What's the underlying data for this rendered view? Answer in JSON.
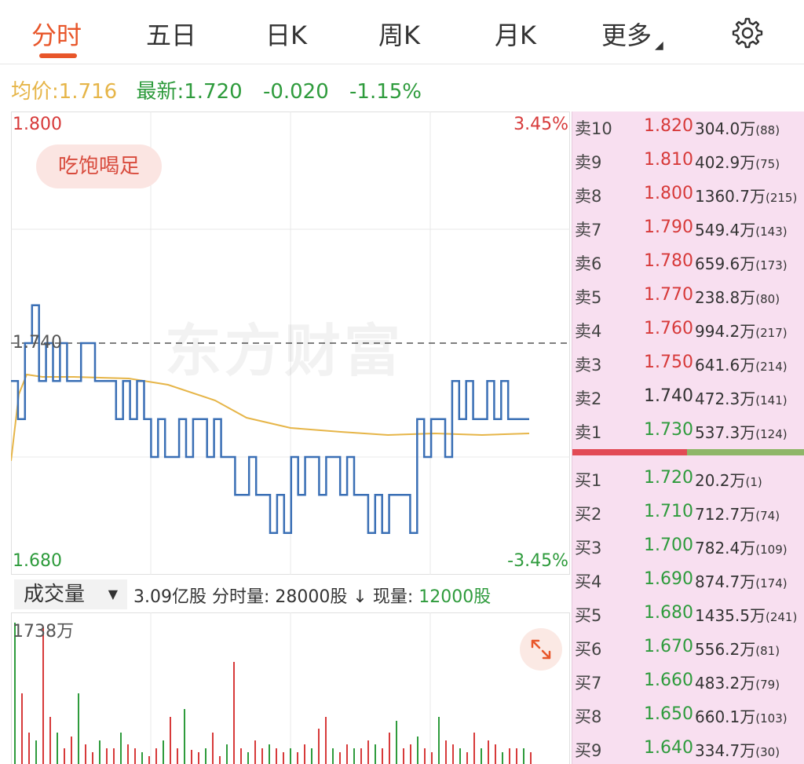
{
  "tabs": [
    {
      "label": "分时",
      "active": true
    },
    {
      "label": "五日",
      "active": false
    },
    {
      "label": "日K",
      "active": false
    },
    {
      "label": "周K",
      "active": false
    },
    {
      "label": "月K",
      "active": false
    },
    {
      "label": "更多",
      "active": false
    }
  ],
  "settings_icon": "gear-icon",
  "info": {
    "avg_label": "均价:",
    "avg_value": "1.716",
    "latest_label": "最新:",
    "latest_value": "1.720",
    "change": "-0.020",
    "change_pct": "-1.15%"
  },
  "chart_labels": {
    "top_price": "1.800",
    "top_pct": "3.45%",
    "mid_price": "1.740",
    "bottom_price": "1.680",
    "bottom_pct": "-3.45%"
  },
  "badge": "吃饱喝足",
  "watermark": "东方财富",
  "volume_header": {
    "selector": "成交量",
    "total": "3.09亿股",
    "minute_label": "分时量:",
    "minute_value": "28000股",
    "arrow": "↓",
    "current_label": "现量:",
    "current_value": "12000股"
  },
  "volume_max": "1738万",
  "colors": {
    "accent": "#e8562a",
    "up": "#d73a3a",
    "down": "#2e9b3c",
    "avg_line": "#e6b548",
    "price_line": "#3a6fb5",
    "book_bg": "#f8dff0"
  },
  "order_book": {
    "asks": [
      {
        "label": "卖10",
        "price": "1.820",
        "volume": "304.0万",
        "count": "(88)",
        "color": "red"
      },
      {
        "label": "卖9",
        "price": "1.810",
        "volume": "402.9万",
        "count": "(75)",
        "color": "red"
      },
      {
        "label": "卖8",
        "price": "1.800",
        "volume": "1360.7万",
        "count": "(215)",
        "color": "red"
      },
      {
        "label": "卖7",
        "price": "1.790",
        "volume": "549.4万",
        "count": "(143)",
        "color": "red"
      },
      {
        "label": "卖6",
        "price": "1.780",
        "volume": "659.6万",
        "count": "(173)",
        "color": "red"
      },
      {
        "label": "卖5",
        "price": "1.770",
        "volume": "238.8万",
        "count": "(80)",
        "color": "red"
      },
      {
        "label": "卖4",
        "price": "1.760",
        "volume": "994.2万",
        "count": "(217)",
        "color": "red"
      },
      {
        "label": "卖3",
        "price": "1.750",
        "volume": "641.6万",
        "count": "(214)",
        "color": "red"
      },
      {
        "label": "卖2",
        "price": "1.740",
        "volume": "472.3万",
        "count": "(141)",
        "color": "gray"
      },
      {
        "label": "卖1",
        "price": "1.730",
        "volume": "537.3万",
        "count": "(124)",
        "color": "green"
      }
    ],
    "bids": [
      {
        "label": "买1",
        "price": "1.720",
        "volume": "20.2万",
        "count": "(1)",
        "color": "green"
      },
      {
        "label": "买2",
        "price": "1.710",
        "volume": "712.7万",
        "count": "(74)",
        "color": "green"
      },
      {
        "label": "买3",
        "price": "1.700",
        "volume": "782.4万",
        "count": "(109)",
        "color": "green"
      },
      {
        "label": "买4",
        "price": "1.690",
        "volume": "874.7万",
        "count": "(174)",
        "color": "green"
      },
      {
        "label": "买5",
        "price": "1.680",
        "volume": "1435.5万",
        "count": "(241)",
        "color": "green"
      },
      {
        "label": "买6",
        "price": "1.670",
        "volume": "556.2万",
        "count": "(81)",
        "color": "green"
      },
      {
        "label": "买7",
        "price": "1.660",
        "volume": "483.2万",
        "count": "(79)",
        "color": "green"
      },
      {
        "label": "买8",
        "price": "1.650",
        "volume": "660.1万",
        "count": "(103)",
        "color": "green"
      },
      {
        "label": "买9",
        "price": "1.640",
        "volume": "334.7万",
        "count": "(30)",
        "color": "green"
      }
    ]
  }
}
